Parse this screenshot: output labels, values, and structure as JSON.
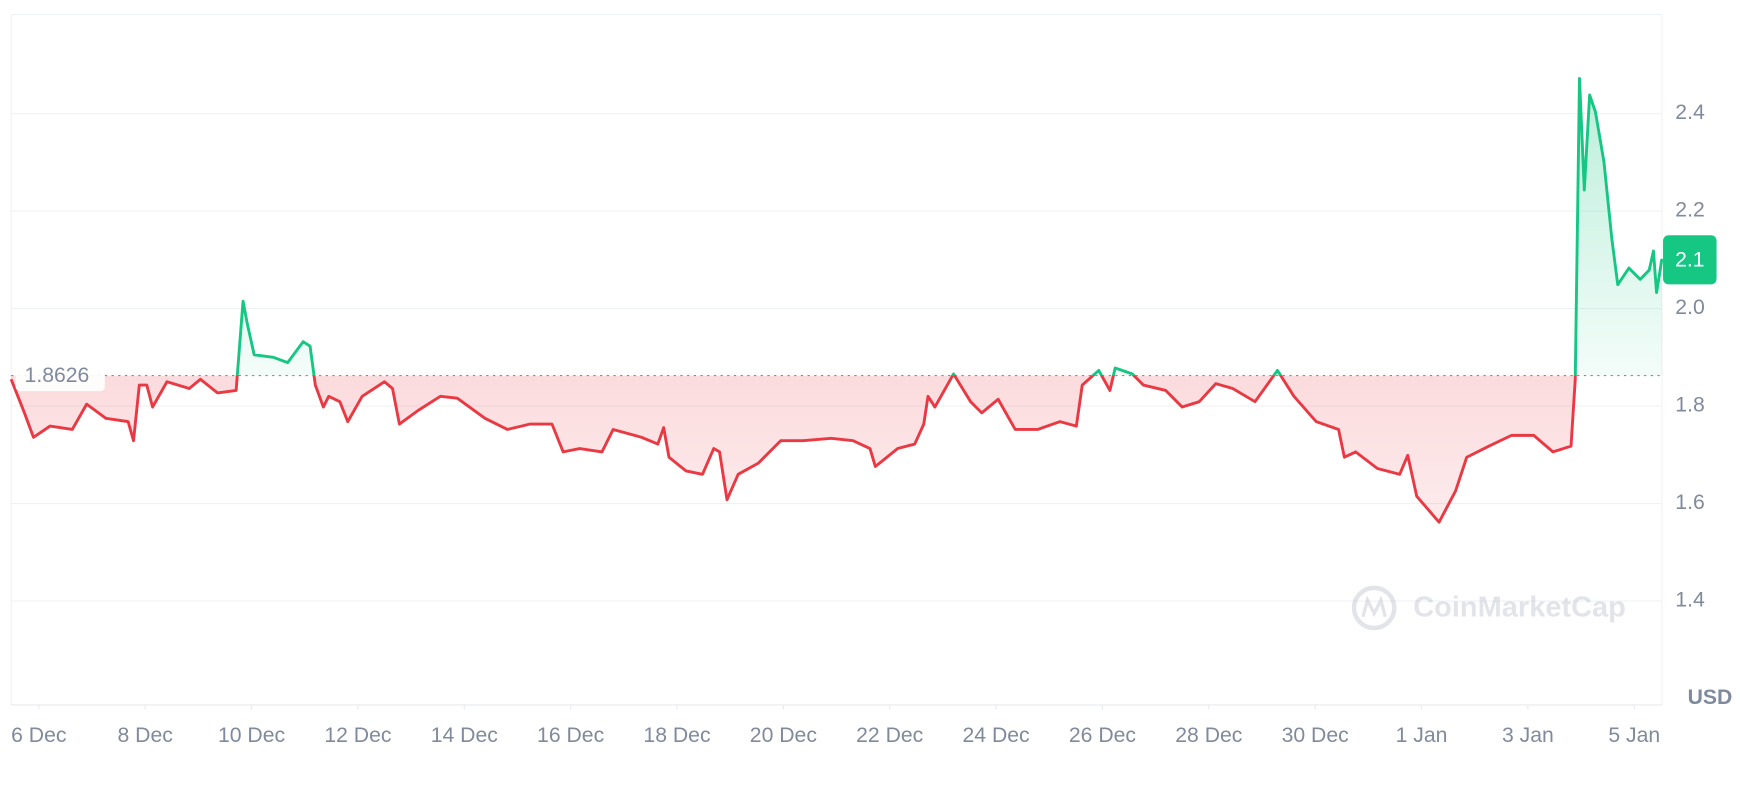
{
  "chart_data": {
    "type": "line",
    "watermark": "CoinMarketCap",
    "unit": "USD",
    "baseline": 1.8626,
    "current_price": 2.1,
    "up_color": "#16c784",
    "down_color": "#ea3943",
    "grid": true,
    "xlim": [
      -0.52,
      30.52
    ],
    "xticks": [
      {
        "value": 0,
        "label": "6 Dec"
      },
      {
        "value": 2,
        "label": "8 Dec"
      },
      {
        "value": 4,
        "label": "10 Dec"
      },
      {
        "value": 6,
        "label": "12 Dec"
      },
      {
        "value": 8,
        "label": "14 Dec"
      },
      {
        "value": 10,
        "label": "16 Dec"
      },
      {
        "value": 12,
        "label": "18 Dec"
      },
      {
        "value": 14,
        "label": "20 Dec"
      },
      {
        "value": 16,
        "label": "22 Dec"
      },
      {
        "value": 18,
        "label": "24 Dec"
      },
      {
        "value": 20,
        "label": "26 Dec"
      },
      {
        "value": 22,
        "label": "28 Dec"
      },
      {
        "value": 24,
        "label": "30 Dec"
      },
      {
        "value": 26,
        "label": "1 Jan"
      },
      {
        "value": 28,
        "label": "3 Jan"
      },
      {
        "value": 30,
        "label": "5 Jan"
      }
    ],
    "ylim": [
      1.187,
      2.603
    ],
    "yticks": [
      1.4,
      1.6,
      1.8,
      {
        "value": 2.0,
        "label": "2.0"
      },
      2.2,
      2.4
    ],
    "x": [
      -0.52,
      -0.27,
      -0.1,
      0.21,
      0.63,
      0.9,
      1.26,
      1.68,
      1.78,
      1.89,
      2.03,
      2.14,
      2.41,
      2.83,
      3.04,
      3.36,
      3.71,
      3.84,
      3.92,
      4.05,
      4.41,
      4.68,
      4.97,
      5.1,
      5.2,
      5.35,
      5.45,
      5.66,
      5.81,
      6.08,
      6.5,
      6.65,
      6.78,
      7.13,
      7.55,
      7.87,
      8.39,
      8.81,
      9.23,
      9.65,
      9.86,
      10.17,
      10.59,
      10.8,
      11.33,
      11.64,
      11.75,
      11.85,
      12.17,
      12.48,
      12.69,
      12.8,
      12.94,
      13.15,
      13.53,
      13.95,
      14.37,
      14.9,
      15.31,
      15.63,
      15.73,
      16.15,
      16.47,
      16.64,
      16.72,
      16.85,
      17.2,
      17.52,
      17.73,
      18.04,
      18.36,
      18.78,
      19.2,
      19.51,
      19.62,
      19.93,
      20.14,
      20.24,
      20.56,
      20.77,
      21.19,
      21.5,
      21.82,
      22.13,
      22.45,
      22.87,
      23.29,
      23.6,
      24.02,
      24.44,
      24.55,
      24.76,
      25.17,
      25.59,
      25.74,
      25.91,
      26.33,
      26.64,
      26.85,
      27.27,
      27.69,
      28.11,
      28.47,
      28.81,
      28.89,
      28.97,
      29.06,
      29.16,
      29.27,
      29.43,
      29.58,
      29.69,
      29.9,
      30.11,
      30.28,
      30.36,
      30.42,
      30.52
    ],
    "values": [
      1.855,
      1.786,
      1.736,
      1.759,
      1.752,
      1.804,
      1.775,
      1.768,
      1.729,
      1.843,
      1.843,
      1.798,
      1.85,
      1.836,
      1.855,
      1.827,
      1.832,
      2.015,
      1.969,
      1.905,
      1.9,
      1.889,
      1.932,
      1.923,
      1.843,
      1.798,
      1.82,
      1.809,
      1.768,
      1.82,
      1.85,
      1.836,
      1.763,
      1.791,
      1.82,
      1.816,
      1.775,
      1.752,
      1.763,
      1.763,
      1.706,
      1.713,
      1.706,
      1.752,
      1.736,
      1.722,
      1.756,
      1.695,
      1.667,
      1.66,
      1.713,
      1.706,
      1.608,
      1.66,
      1.683,
      1.729,
      1.729,
      1.734,
      1.729,
      1.713,
      1.676,
      1.713,
      1.722,
      1.763,
      1.82,
      1.798,
      1.866,
      1.809,
      1.786,
      1.814,
      1.752,
      1.752,
      1.768,
      1.759,
      1.843,
      1.873,
      1.832,
      1.878,
      1.866,
      1.843,
      1.832,
      1.798,
      1.809,
      1.846,
      1.836,
      1.809,
      1.873,
      1.82,
      1.768,
      1.752,
      1.695,
      1.706,
      1.672,
      1.66,
      1.699,
      1.615,
      1.562,
      1.626,
      1.695,
      1.718,
      1.74,
      1.74,
      1.706,
      1.718,
      1.855,
      2.472,
      2.243,
      2.438,
      2.403,
      2.301,
      2.141,
      2.049,
      2.083,
      2.06,
      2.079,
      2.118,
      2.033,
      2.102
    ]
  }
}
